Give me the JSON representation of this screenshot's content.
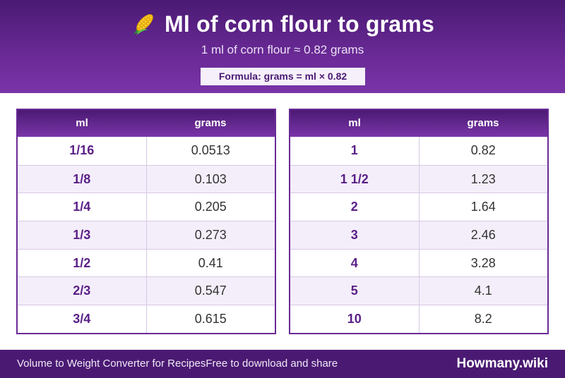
{
  "header": {
    "title": "Ml of corn flour to grams",
    "icon": "corn-icon",
    "subtitle": "1 ml of corn flour ≈ 0.82 grams",
    "formula": "Formula: grams = ml × 0.82"
  },
  "colors": {
    "primary": "#4a1a73",
    "accent": "#7a34a8",
    "ml_text": "#5a1f86",
    "row_alt": "#f4eefa"
  },
  "tables": [
    {
      "headers": {
        "ml": "ml",
        "grams": "grams"
      },
      "rows": [
        {
          "ml": "1/16",
          "grams": "0.0513"
        },
        {
          "ml": "1/8",
          "grams": "0.103"
        },
        {
          "ml": "1/4",
          "grams": "0.205"
        },
        {
          "ml": "1/3",
          "grams": "0.273"
        },
        {
          "ml": "1/2",
          "grams": "0.41"
        },
        {
          "ml": "2/3",
          "grams": "0.547"
        },
        {
          "ml": "3/4",
          "grams": "0.615"
        }
      ]
    },
    {
      "headers": {
        "ml": "ml",
        "grams": "grams"
      },
      "rows": [
        {
          "ml": "1",
          "grams": "0.82"
        },
        {
          "ml": "1 1/2",
          "grams": "1.23"
        },
        {
          "ml": "2",
          "grams": "1.64"
        },
        {
          "ml": "3",
          "grams": "2.46"
        },
        {
          "ml": "4",
          "grams": "3.28"
        },
        {
          "ml": "5",
          "grams": "4.1"
        },
        {
          "ml": "10",
          "grams": "8.2"
        }
      ]
    }
  ],
  "footer": {
    "left_text": "Volume to Weight Converter for Recipes",
    "middle_text": "Free to download and share",
    "brand": "Howmany.wiki"
  }
}
